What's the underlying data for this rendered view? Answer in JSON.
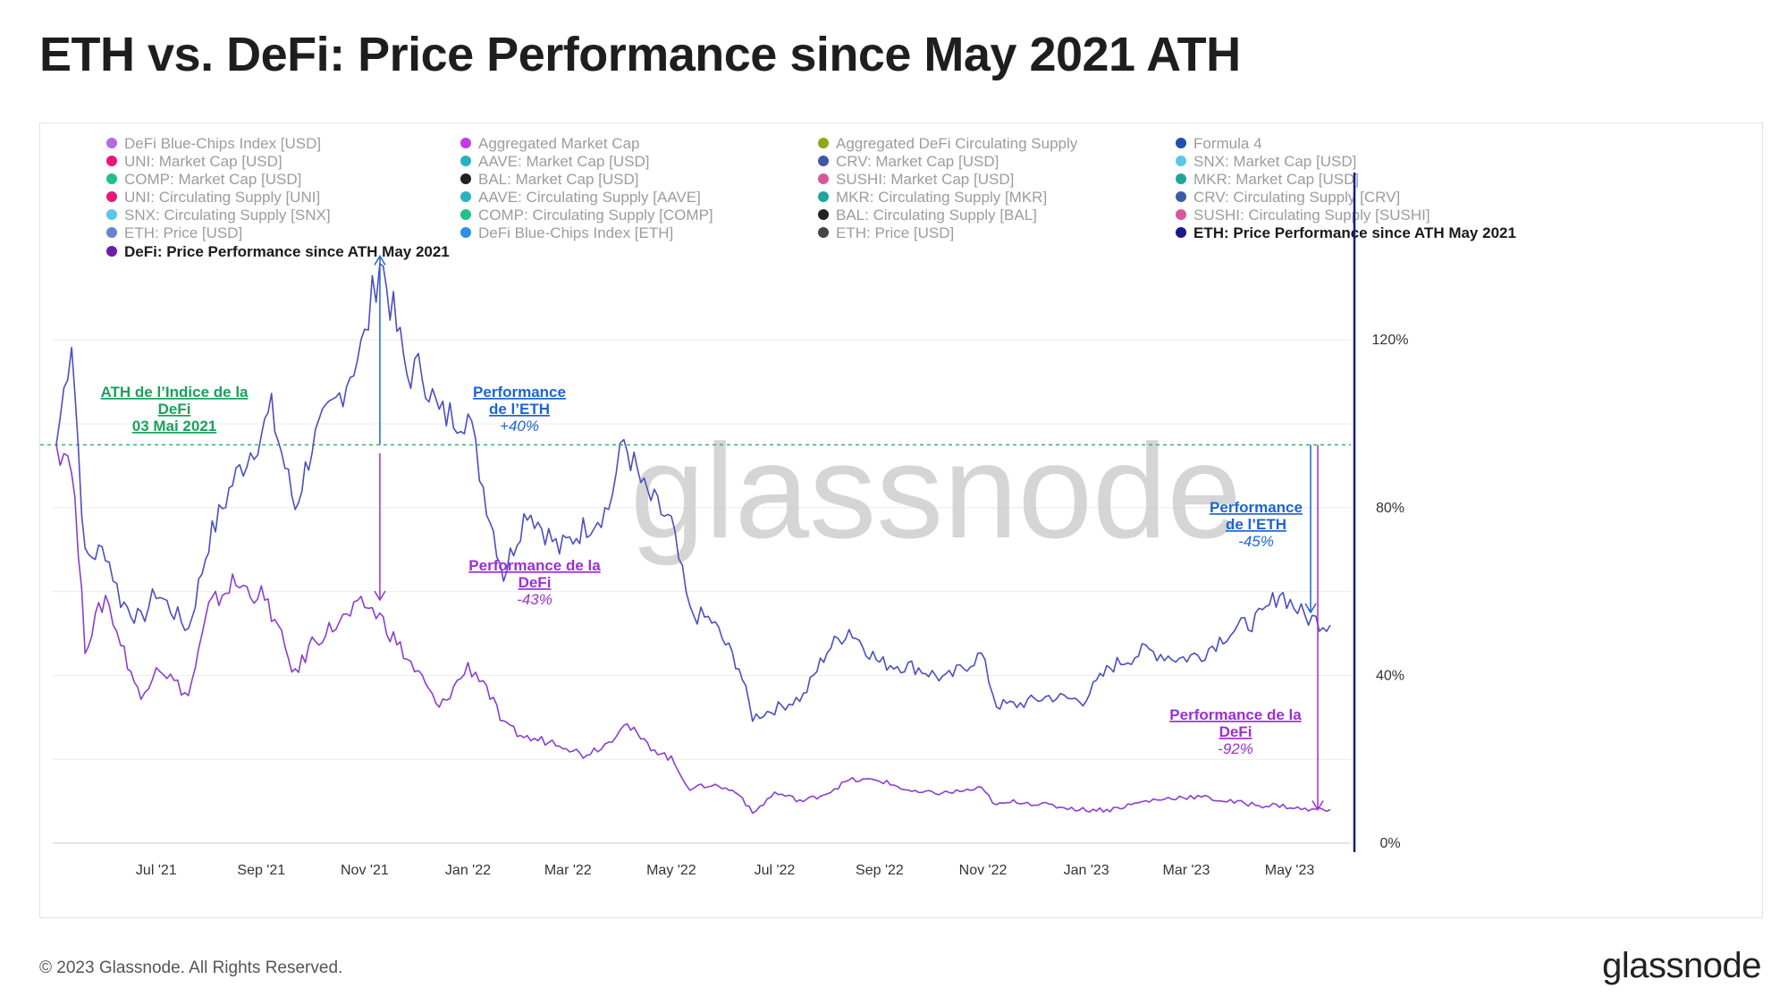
{
  "header": {
    "title": "ETH vs. DeFi: Price Performance since May 2021 ATH"
  },
  "footer": {
    "copyright": "© 2023 Glassnode. All Rights Reserved.",
    "brand": "glassnode"
  },
  "watermark": "glassnode",
  "legend": [
    {
      "label": "DeFi Blue-Chips Index [USD]",
      "color": "#b26be0",
      "active": false
    },
    {
      "label": "Aggregated Market Cap",
      "color": "#c13be8",
      "active": false
    },
    {
      "label": "Aggregated DeFi Circulating Supply",
      "color": "#8aaa12",
      "active": false
    },
    {
      "label": "Formula 4",
      "color": "#1f4fb5",
      "active": false
    },
    {
      "label": "UNI: Market Cap [USD]",
      "color": "#e8187a",
      "active": false
    },
    {
      "label": "AAVE: Market Cap [USD]",
      "color": "#2ab0c2",
      "active": false
    },
    {
      "label": "CRV: Market Cap [USD]",
      "color": "#3d5aa8",
      "active": false
    },
    {
      "label": "SNX: Market Cap [USD]",
      "color": "#5bc6e8",
      "active": false
    },
    {
      "label": "COMP: Market Cap [USD]",
      "color": "#1fc08a",
      "active": false
    },
    {
      "label": "BAL: Market Cap [USD]",
      "color": "#222222",
      "active": false
    },
    {
      "label": "SUSHI: Market Cap [USD]",
      "color": "#d9569a",
      "active": false
    },
    {
      "label": "MKR: Market Cap [USD]",
      "color": "#1fa59a",
      "active": false
    },
    {
      "label": "UNI: Circulating Supply [UNI]",
      "color": "#e8187a",
      "active": false
    },
    {
      "label": "AAVE: Circulating Supply [AAVE]",
      "color": "#2ab0c2",
      "active": false
    },
    {
      "label": "MKR: Circulating Supply [MKR]",
      "color": "#1fa59a",
      "active": false
    },
    {
      "label": "CRV: Circulating Supply [CRV]",
      "color": "#3d5aa8",
      "active": false
    },
    {
      "label": "SNX: Circulating Supply [SNX]",
      "color": "#5bc6e8",
      "active": false
    },
    {
      "label": "COMP: Circulating Supply [COMP]",
      "color": "#1fc08a",
      "active": false
    },
    {
      "label": "BAL: Circulating Supply [BAL]",
      "color": "#222222",
      "active": false
    },
    {
      "label": "SUSHI: Circulating Supply [SUSHI]",
      "color": "#d9569a",
      "active": false
    },
    {
      "label": "ETH: Price [USD]",
      "color": "#6b7fd6",
      "active": false
    },
    {
      "label": "DeFi Blue-Chips Index [ETH]",
      "color": "#2f8ee8",
      "active": false
    },
    {
      "label": "ETH: Price [USD]",
      "color": "#444444",
      "active": false
    },
    {
      "label": "ETH: Price Performance since ATH May 2021",
      "color": "#151a8c",
      "active": true
    },
    {
      "label": "DeFi: Price Performance since ATH May 2021",
      "color": "#6a1fa8",
      "active": true
    }
  ],
  "annotations": {
    "ath": {
      "lines": [
        "ATH de l’Indice de la",
        "DeFi",
        "03 Mai 2021"
      ],
      "color": "#1aa15a"
    },
    "eth_peak": {
      "lines": [
        "Performance",
        "de l’ETH"
      ],
      "value": "+40%",
      "color": "#1e63d6"
    },
    "defi_peak": {
      "lines": [
        "Performance de la",
        "DeFi"
      ],
      "value": "-43%",
      "color": "#9b2fd6"
    },
    "eth_now": {
      "lines": [
        "Performance",
        "de l’ETH"
      ],
      "value": "-45%",
      "color": "#1e63d6"
    },
    "defi_now": {
      "lines": [
        "Performance de la",
        "DeFi"
      ],
      "value": "-92%",
      "color": "#9b2fd6"
    }
  },
  "chart_data": {
    "type": "line",
    "title": "ETH vs. DeFi: Price Performance since May 2021 ATH",
    "x_ticks": [
      "Jul '21",
      "Sep '21",
      "Nov '21",
      "Jan '22",
      "Mar '22",
      "May '22",
      "Jul '22",
      "Sep '22",
      "Nov '22",
      "Jan '23",
      "Mar '23",
      "May '23"
    ],
    "y_ticks": [
      "0%",
      "40%",
      "80%",
      "120%"
    ],
    "ylim": [
      0,
      160
    ],
    "reference_line": {
      "value": 95,
      "style": "dashed",
      "color": "#2bb673"
    },
    "grid": true,
    "series": [
      {
        "name": "ETH: Price Performance since ATH May 2021",
        "color": "#4b4fbf",
        "x": [
          "2021-05-03",
          "2021-05-12",
          "2021-05-20",
          "2021-06-01",
          "2021-06-10",
          "2021-06-22",
          "2021-07-01",
          "2021-07-20",
          "2021-08-01",
          "2021-08-15",
          "2021-09-01",
          "2021-09-07",
          "2021-09-21",
          "2021-10-01",
          "2021-10-15",
          "2021-11-01",
          "2021-11-10",
          "2021-11-26",
          "2021-12-05",
          "2021-12-15",
          "2022-01-01",
          "2022-01-10",
          "2022-01-22",
          "2022-02-05",
          "2022-02-24",
          "2022-03-10",
          "2022-03-25",
          "2022-04-03",
          "2022-04-15",
          "2022-05-01",
          "2022-05-12",
          "2022-05-25",
          "2022-06-10",
          "2022-06-18",
          "2022-07-01",
          "2022-07-18",
          "2022-08-01",
          "2022-08-14",
          "2022-09-01",
          "2022-09-22",
          "2022-10-10",
          "2022-10-31",
          "2022-11-09",
          "2022-11-21",
          "2022-12-10",
          "2022-12-30",
          "2023-01-15",
          "2023-02-05",
          "2023-02-25",
          "2023-03-10",
          "2023-03-25",
          "2023-04-15",
          "2023-04-25",
          "2023-05-10",
          "2023-05-25"
        ],
        "values": [
          95,
          121,
          68,
          70,
          58,
          53,
          60,
          51,
          72,
          86,
          98,
          103,
          80,
          95,
          105,
          120,
          140,
          112,
          113,
          102,
          102,
          85,
          64,
          80,
          70,
          75,
          80,
          96,
          84,
          76,
          55,
          53,
          42,
          30,
          32,
          35,
          46,
          51,
          43,
          42,
          39,
          45,
          33,
          33,
          35,
          34,
          42,
          46,
          44,
          45,
          50,
          54,
          60,
          54,
          52
        ]
      },
      {
        "name": "DeFi: Price Performance since ATH May 2021",
        "color": "#8a3fd0",
        "x": [
          "2021-05-03",
          "2021-05-12",
          "2021-05-20",
          "2021-06-01",
          "2021-06-10",
          "2021-06-22",
          "2021-07-01",
          "2021-07-20",
          "2021-08-01",
          "2021-08-15",
          "2021-09-01",
          "2021-09-07",
          "2021-09-21",
          "2021-10-01",
          "2021-10-15",
          "2021-11-01",
          "2021-11-10",
          "2021-11-26",
          "2021-12-05",
          "2021-12-15",
          "2022-01-01",
          "2022-01-10",
          "2022-01-22",
          "2022-02-05",
          "2022-02-24",
          "2022-03-10",
          "2022-03-25",
          "2022-04-03",
          "2022-04-15",
          "2022-05-01",
          "2022-05-12",
          "2022-05-25",
          "2022-06-10",
          "2022-06-18",
          "2022-07-01",
          "2022-07-18",
          "2022-08-01",
          "2022-08-14",
          "2022-09-01",
          "2022-09-22",
          "2022-10-10",
          "2022-10-31",
          "2022-11-09",
          "2022-11-21",
          "2022-12-10",
          "2022-12-30",
          "2023-01-15",
          "2023-02-05",
          "2023-02-25",
          "2023-03-10",
          "2023-03-25",
          "2023-04-15",
          "2023-04-25",
          "2023-05-10",
          "2023-05-25"
        ],
        "values": [
          95,
          92,
          47,
          59,
          48,
          34,
          43,
          35,
          56,
          62,
          59,
          55,
          40,
          48,
          52,
          57,
          54,
          44,
          39,
          32,
          42,
          39,
          28,
          25,
          24,
          21,
          24,
          29,
          24,
          20,
          13,
          14,
          12,
          7,
          12,
          10,
          12,
          15,
          15,
          12,
          12,
          13,
          9,
          10,
          9,
          8,
          8,
          10,
          11,
          11,
          10,
          9,
          9,
          8,
          8
        ]
      }
    ]
  }
}
